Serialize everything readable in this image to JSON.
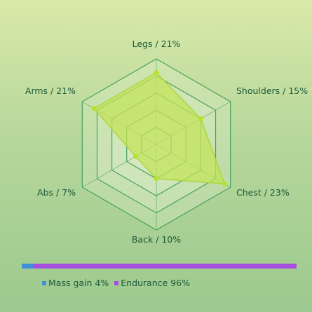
{
  "chart_data": {
    "type": "radar",
    "axes": [
      {
        "name": "Legs",
        "value": 21,
        "label": "Legs / 21%"
      },
      {
        "name": "Shoulders",
        "value": 15,
        "label": "Shoulders / 15%"
      },
      {
        "name": "Chest",
        "value": 23,
        "label": "Chest / 23%"
      },
      {
        "name": "Back",
        "value": 10,
        "label": "Back / 10%"
      },
      {
        "name": "Abs",
        "value": 7,
        "label": "Abs / 7%"
      },
      {
        "name": "Arms",
        "value": 21,
        "label": "Arms / 21%"
      }
    ],
    "rmax": 25,
    "grid_levels": 5,
    "colors": {
      "fill": "#c3e35a",
      "stroke": "#a9d83d",
      "point": "#b9e02c",
      "grid_line": "#4aa35b",
      "grid_fill": "#e2f0d2"
    }
  },
  "composition": {
    "segments": [
      {
        "name": "Mass gain",
        "value": 4,
        "color": "#3f8fd9",
        "label": "Mass gain 4%"
      },
      {
        "name": "Endurance",
        "value": 96,
        "color": "#a64fe0",
        "label": "Endurance 96%"
      }
    ]
  }
}
